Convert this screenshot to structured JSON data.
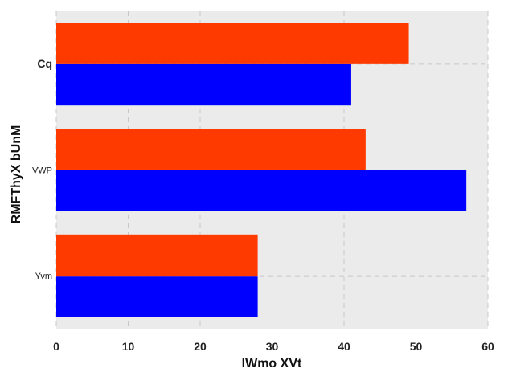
{
  "chart_data": {
    "type": "bar",
    "orientation": "horizontal",
    "categories": [
      "Yvm",
      "VWP",
      "Cq"
    ],
    "category_bold": [
      false,
      false,
      true
    ],
    "series": [
      {
        "color": "#0000ff",
        "values": [
          28,
          57,
          41
        ]
      },
      {
        "color": "#ff3a00",
        "values": [
          28,
          43,
          49
        ]
      }
    ],
    "xlabel": "IWmo  XVt",
    "ylabel": "RMFThyX bUnM",
    "xlim": [
      0,
      60
    ],
    "xticks": [
      0,
      10,
      20,
      30,
      40,
      50,
      60
    ],
    "grid": true,
    "legend": "none",
    "background": "#ebebeb"
  }
}
